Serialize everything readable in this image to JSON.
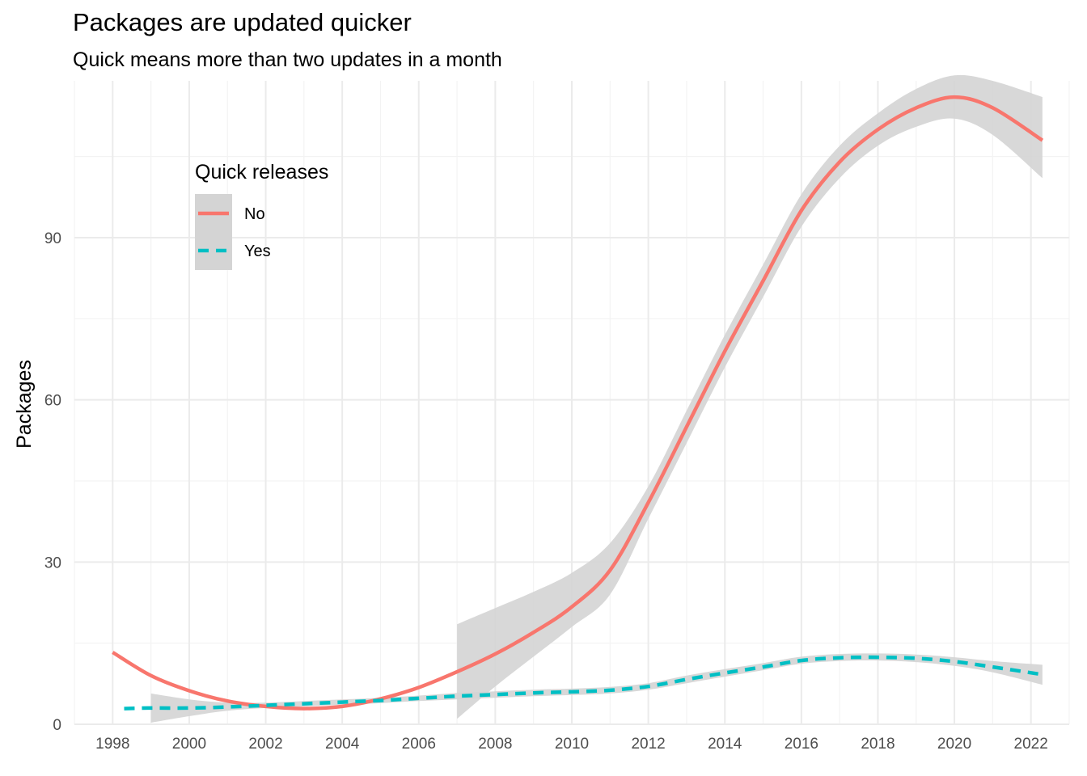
{
  "chart_data": {
    "type": "line",
    "title": "Packages are updated quicker",
    "subtitle": "Quick means more than two updates in a month",
    "xlabel": "",
    "ylabel": "Packages",
    "xlim": [
      1997.0,
      2023.0
    ],
    "ylim": [
      0,
      119
    ],
    "x_ticks": [
      "1998",
      "2000",
      "2002",
      "2004",
      "2006",
      "2008",
      "2010",
      "2012",
      "2014",
      "2016",
      "2018",
      "2020",
      "2022"
    ],
    "y_ticks": [
      "0",
      "30",
      "60",
      "90"
    ],
    "grid": true,
    "legend": {
      "title": "Quick releases",
      "position": "top-left inside"
    },
    "series": [
      {
        "name": "No",
        "color": "#F8766D",
        "line_style": "solid",
        "x": [
          1998,
          1999,
          2000,
          2001,
          2002,
          2003,
          2004,
          2005,
          2006,
          2007,
          2008,
          2009,
          2010,
          2011,
          2012,
          2013,
          2014,
          2015,
          2016,
          2017,
          2018,
          2019,
          2020,
          2021,
          2022.3
        ],
        "y": [
          13.3,
          9.0,
          6.2,
          4.3,
          3.3,
          2.9,
          3.3,
          4.7,
          6.8,
          9.7,
          13.0,
          17.0,
          21.7,
          28.5,
          41.0,
          55.0,
          69.0,
          82.0,
          95.0,
          104.0,
          110.0,
          114.0,
          116.0,
          114.0,
          108.0
        ],
        "lower": [
          null,
          null,
          null,
          null,
          null,
          null,
          null,
          null,
          null,
          1.0,
          7.0,
          12.5,
          18.0,
          24.0,
          38.0,
          52.0,
          66.0,
          79.0,
          92.0,
          101.0,
          107.0,
          110.5,
          112.0,
          109.0,
          101.0
        ],
        "upper": [
          null,
          null,
          null,
          null,
          null,
          null,
          null,
          null,
          null,
          18.5,
          21.5,
          24.5,
          28.0,
          33.5,
          44.0,
          58.0,
          72.0,
          85.0,
          98.0,
          107.0,
          113.0,
          117.5,
          120.0,
          119.0,
          116.0
        ]
      },
      {
        "name": "Yes",
        "color": "#00BFC4",
        "line_style": "dashed",
        "x": [
          1998.3,
          1999,
          2000,
          2001,
          2002,
          2003,
          2004,
          2005,
          2006,
          2007,
          2008,
          2009,
          2010,
          2011,
          2012,
          2013,
          2014,
          2015,
          2016,
          2017,
          2018,
          2019,
          2020,
          2021,
          2022.3
        ],
        "y": [
          2.9,
          3.0,
          3.0,
          3.2,
          3.5,
          3.8,
          4.1,
          4.4,
          4.8,
          5.2,
          5.5,
          5.8,
          6.0,
          6.3,
          7.0,
          8.3,
          9.5,
          10.6,
          11.8,
          12.3,
          12.4,
          12.2,
          11.6,
          10.6,
          9.2
        ],
        "lower": [
          null,
          0.3,
          1.5,
          2.5,
          3.0,
          3.3,
          3.6,
          3.9,
          4.3,
          4.6,
          4.9,
          5.2,
          5.4,
          5.7,
          6.4,
          7.6,
          8.8,
          10.0,
          11.2,
          11.7,
          11.8,
          11.5,
          10.8,
          9.6,
          7.3
        ],
        "upper": [
          null,
          5.7,
          4.6,
          4.0,
          4.0,
          4.3,
          4.6,
          4.9,
          5.3,
          5.8,
          6.1,
          6.4,
          6.6,
          6.9,
          7.6,
          9.0,
          10.2,
          11.3,
          12.5,
          13.0,
          13.1,
          12.9,
          12.4,
          11.7,
          11.0
        ]
      }
    ],
    "confidence_band_color": "#d4d4d4"
  }
}
